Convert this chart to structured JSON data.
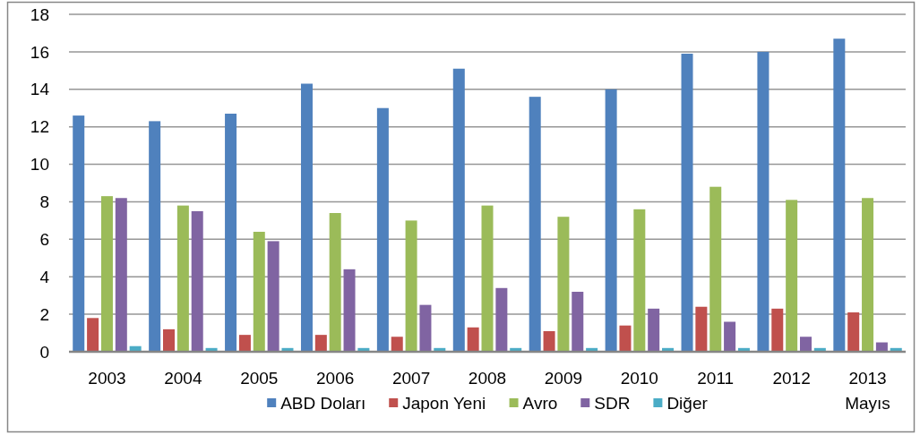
{
  "chart_data": {
    "type": "bar",
    "categories": [
      "2003",
      "2004",
      "2005",
      "2006",
      "2007",
      "2008",
      "2009",
      "2010",
      "2011",
      "2012",
      "2013 Mayıs"
    ],
    "series": [
      {
        "name": "ABD Doları",
        "color": "#4f81bd",
        "values": [
          12.6,
          12.3,
          12.7,
          14.3,
          13.0,
          15.1,
          13.6,
          14.0,
          15.9,
          16.0,
          16.7
        ]
      },
      {
        "name": "Japon Yeni",
        "color": "#c0504d",
        "values": [
          1.8,
          1.2,
          0.9,
          0.9,
          0.8,
          1.3,
          1.1,
          1.4,
          2.4,
          2.3,
          2.1
        ]
      },
      {
        "name": "Avro",
        "color": "#9bbb59",
        "values": [
          8.3,
          7.8,
          6.4,
          7.4,
          7.0,
          7.8,
          7.2,
          7.6,
          8.8,
          8.1,
          8.2
        ]
      },
      {
        "name": "SDR",
        "color": "#8064a2",
        "values": [
          8.2,
          7.5,
          5.9,
          4.4,
          2.5,
          3.4,
          3.2,
          2.3,
          1.6,
          0.8,
          0.5
        ]
      },
      {
        "name": "Diğer",
        "color": "#4bacc6",
        "values": [
          0.3,
          0.2,
          0.2,
          0.2,
          0.2,
          0.2,
          0.2,
          0.2,
          0.2,
          0.2,
          0.2
        ]
      }
    ],
    "ylim": [
      0,
      18
    ],
    "yticks": [
      0,
      2,
      4,
      6,
      8,
      10,
      12,
      14,
      16,
      18
    ],
    "grid": "y",
    "legend": "bottom"
  }
}
